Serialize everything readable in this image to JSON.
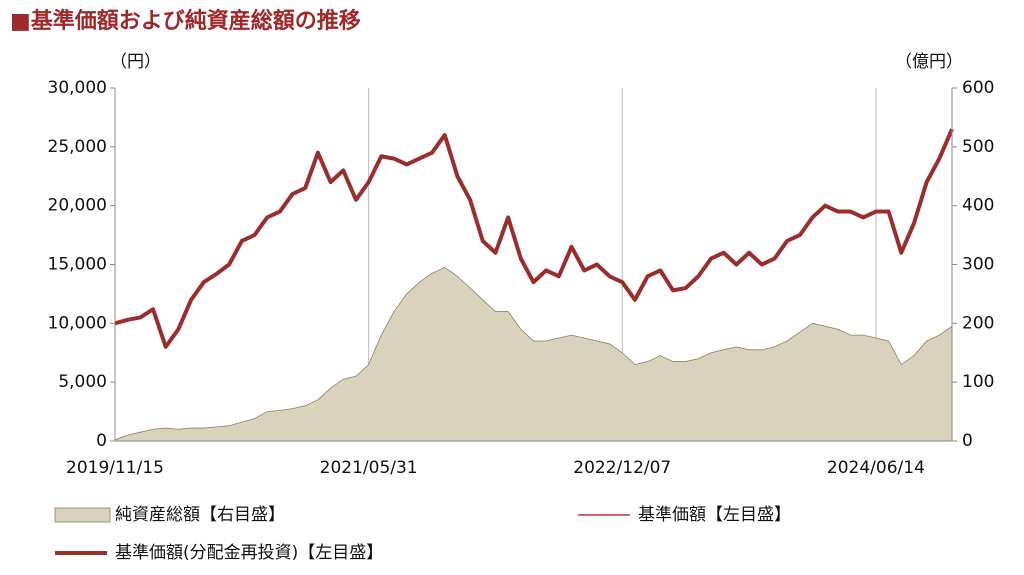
{
  "chart_data": {
    "type": "line",
    "title": "■基準価額および純資産総額の推移",
    "y_unit": "（円）",
    "y2_unit": "（億円）",
    "categories": [
      "2019/11/15",
      null,
      null,
      null,
      null,
      null,
      null,
      null,
      null,
      null,
      null,
      null,
      null,
      null,
      null,
      null,
      null,
      null,
      null,
      null,
      "2021/05/31",
      null,
      null,
      null,
      null,
      null,
      null,
      null,
      null,
      null,
      null,
      null,
      null,
      null,
      null,
      null,
      null,
      null,
      null,
      null,
      "2022/12/07",
      null,
      null,
      null,
      null,
      null,
      null,
      null,
      null,
      null,
      null,
      null,
      null,
      null,
      null,
      null,
      null,
      null,
      null,
      null,
      "2024/06/14",
      null,
      null,
      null,
      null,
      null,
      null
    ],
    "ylim": [
      0,
      30000
    ],
    "yticks": [
      0,
      {
        "value": 5000,
        "label": "5,000"
      },
      {
        "value": 10000,
        "label": "10,000"
      },
      {
        "value": 15000,
        "label": "15,000"
      },
      {
        "value": 20000,
        "label": "20,000"
      },
      {
        "value": 25000,
        "label": "25,000"
      },
      {
        "value": 30000,
        "label": "30,000"
      }
    ],
    "y2lim": [
      0,
      600
    ],
    "y2ticks": [
      0,
      100,
      200,
      300,
      400,
      500,
      600
    ],
    "series": [
      {
        "name": "純資産総額【右目盛】",
        "kind": "area",
        "axis": "y2",
        "color": "#d9d3bd",
        "values": [
          2,
          10,
          15,
          20,
          22,
          20,
          22,
          22,
          24,
          26,
          32,
          38,
          50,
          52,
          55,
          60,
          70,
          90,
          105,
          110,
          130,
          180,
          220,
          250,
          270,
          285,
          295,
          280,
          260,
          240,
          220,
          220,
          190,
          170,
          170,
          175,
          180,
          175,
          170,
          165,
          150,
          130,
          135,
          145,
          135,
          135,
          140,
          150,
          155,
          160,
          155,
          155,
          160,
          170,
          185,
          200,
          195,
          190,
          180,
          180,
          175,
          170,
          130,
          145,
          170,
          180,
          195
        ]
      },
      {
        "name": "基準価額【左目盛】",
        "kind": "thin",
        "color": "#b03a3a",
        "values": [
          10000,
          10300,
          10500,
          11200,
          8000,
          9500,
          12000,
          13500,
          14200,
          15000,
          17000,
          17500,
          19000,
          19500,
          21000,
          21500,
          24500,
          22000,
          23000,
          20500,
          22000,
          24200,
          24000,
          23500,
          24000,
          24500,
          26000,
          22500,
          20500,
          17000,
          16000,
          19000,
          15500,
          13500,
          14500,
          14000,
          16500,
          14500,
          15000,
          14000,
          13500,
          12000,
          14000,
          14500,
          12800,
          13000,
          14000,
          15500,
          16000,
          15000,
          16000,
          15000,
          15500,
          17000,
          17500,
          19000,
          20000,
          19500,
          19500,
          19000,
          19500,
          19500,
          16000,
          18500,
          22000,
          24000,
          26500
        ]
      },
      {
        "name": "基準価額(分配金再投資)【左目盛】",
        "kind": "thick",
        "color": "#9b2d2d",
        "values": [
          10000,
          10300,
          10500,
          11200,
          8000,
          9500,
          12000,
          13500,
          14200,
          15000,
          17000,
          17500,
          19000,
          19500,
          21000,
          21500,
          24500,
          22000,
          23000,
          20500,
          22000,
          24200,
          24000,
          23500,
          24000,
          24500,
          26000,
          22500,
          20500,
          17000,
          16000,
          19000,
          15500,
          13500,
          14500,
          14000,
          16500,
          14500,
          15000,
          14000,
          13500,
          12000,
          14000,
          14500,
          12800,
          13000,
          14000,
          15500,
          16000,
          15000,
          16000,
          15000,
          15500,
          17000,
          17500,
          19000,
          20000,
          19500,
          19500,
          19000,
          19500,
          19500,
          16000,
          18500,
          22000,
          24000,
          26500
        ]
      }
    ]
  }
}
